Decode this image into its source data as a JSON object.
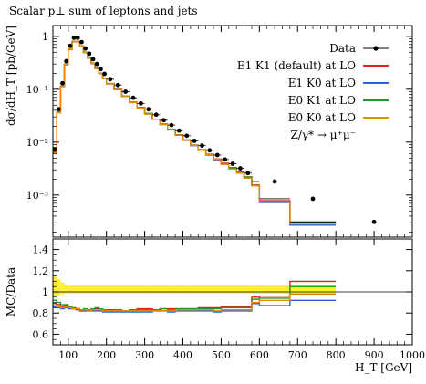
{
  "chart_data": {
    "type": "line",
    "title": "Scalar p⊥ sum of leptons and jets",
    "xlabel": "H_T [GeV]",
    "xlim": [
      60,
      1000
    ],
    "x_ticks": [
      100,
      200,
      300,
      400,
      500,
      600,
      700,
      800,
      900,
      1000
    ],
    "main_panel": {
      "ylabel": "dσ/dH_T [pb/GeV]",
      "scale": "log",
      "ylim": [
        0.00016,
        1.6
      ],
      "y_ticks": [
        {
          "value": 0.001,
          "label": "10⁻³"
        },
        {
          "value": 0.01,
          "label": "10⁻²"
        },
        {
          "value": 0.1,
          "label": "10⁻¹"
        },
        {
          "value": 1,
          "label": "1"
        }
      ],
      "bin_edges": [
        60,
        70,
        80,
        90,
        100,
        110,
        120,
        130,
        140,
        150,
        160,
        170,
        180,
        190,
        200,
        220,
        240,
        260,
        280,
        300,
        320,
        340,
        360,
        380,
        400,
        420,
        440,
        460,
        480,
        500,
        520,
        540,
        560,
        580,
        600,
        680,
        800,
        1000
      ],
      "data": [
        0.0072,
        0.042,
        0.13,
        0.34,
        0.66,
        0.94,
        0.94,
        0.78,
        0.59,
        0.47,
        0.37,
        0.3,
        0.24,
        0.195,
        0.155,
        0.12,
        0.09,
        0.069,
        0.054,
        0.042,
        0.033,
        0.026,
        0.021,
        0.0165,
        0.0132,
        0.0106,
        0.0086,
        0.007,
        0.0057,
        0.0047,
        0.0039,
        0.0032,
        0.0026,
        0.0018,
        0.00085,
        0.00031
      ],
      "data_x": [
        65,
        75,
        85,
        95,
        105,
        115,
        125,
        135,
        145,
        155,
        165,
        175,
        185,
        195,
        210,
        230,
        250,
        270,
        290,
        310,
        330,
        350,
        370,
        390,
        410,
        430,
        450,
        470,
        490,
        510,
        530,
        550,
        570,
        640,
        740,
        900
      ],
      "series": [
        {
          "name": "E1 K1 (default) at LO",
          "color": "#dd2222",
          "values": [
            0.0065,
            0.037,
            0.115,
            0.3,
            0.57,
            0.8,
            0.8,
            0.66,
            0.5,
            0.39,
            0.31,
            0.25,
            0.2,
            0.16,
            0.128,
            0.1,
            0.074,
            0.057,
            0.045,
            0.035,
            0.027,
            0.022,
            0.0175,
            0.0138,
            0.011,
            0.0088,
            0.0072,
            0.0059,
            0.0048,
            0.004,
            0.0033,
            0.0027,
            0.0022,
            0.00155,
            0.00078,
            0.00031
          ]
        },
        {
          "name": "E1 K0 at LO",
          "color": "#2266dd",
          "values": [
            0.0063,
            0.036,
            0.112,
            0.29,
            0.56,
            0.79,
            0.79,
            0.65,
            0.49,
            0.385,
            0.305,
            0.245,
            0.197,
            0.158,
            0.126,
            0.098,
            0.073,
            0.056,
            0.044,
            0.034,
            0.027,
            0.0215,
            0.017,
            0.0135,
            0.0108,
            0.0086,
            0.007,
            0.0057,
            0.0046,
            0.0038,
            0.0031,
            0.0026,
            0.0021,
            0.0015,
            0.00072,
            0.00027
          ]
        },
        {
          "name": "E0 K1 at LO",
          "color": "#229922",
          "values": [
            0.0064,
            0.037,
            0.114,
            0.3,
            0.57,
            0.8,
            0.8,
            0.66,
            0.5,
            0.39,
            0.31,
            0.25,
            0.2,
            0.16,
            0.127,
            0.099,
            0.074,
            0.057,
            0.045,
            0.035,
            0.027,
            0.022,
            0.0174,
            0.0137,
            0.011,
            0.0088,
            0.0071,
            0.0058,
            0.0047,
            0.0039,
            0.0032,
            0.0027,
            0.0022,
            0.00152,
            0.00075,
            0.0003
          ]
        },
        {
          "name": "E0 K0 at LO",
          "color": "#ee8800",
          "values": [
            0.0064,
            0.036,
            0.113,
            0.295,
            0.565,
            0.795,
            0.795,
            0.655,
            0.495,
            0.387,
            0.307,
            0.247,
            0.198,
            0.159,
            0.127,
            0.099,
            0.073,
            0.056,
            0.044,
            0.034,
            0.027,
            0.0217,
            0.0172,
            0.0136,
            0.0109,
            0.0087,
            0.007,
            0.0058,
            0.0047,
            0.0038,
            0.0031,
            0.0026,
            0.0021,
            0.0015,
            0.00074,
            0.00029
          ]
        }
      ],
      "legend": [
        "Data",
        "E1 K1 (default) at LO",
        "E1 K0 at LO",
        "E0 K1 at LO",
        "E0 K0 at LO"
      ],
      "process_label": "Z/γ* → μ⁺μ⁻"
    },
    "ratio_panel": {
      "ylabel": "MC/Data",
      "ylim": [
        0.5,
        1.5
      ],
      "y_ticks": [
        0.6,
        0.8,
        1,
        1.2,
        1.4
      ],
      "band_halfwidth": [
        0.15,
        0.12,
        0.09,
        0.07,
        0.06,
        0.06,
        0.06,
        0.06,
        0.06,
        0.06,
        0.06,
        0.06,
        0.06,
        0.06,
        0.06,
        0.06,
        0.06,
        0.06,
        0.06,
        0.06,
        0.06,
        0.06,
        0.06,
        0.06,
        0.06,
        0.06,
        0.06,
        0.06,
        0.06,
        0.06,
        0.06,
        0.06,
        0.06,
        0.06,
        0.06,
        0.06
      ],
      "series": [
        {
          "name": "E1 K1 (default) at LO",
          "color": "#dd2222",
          "values": [
            0.89,
            0.88,
            0.86,
            0.87,
            0.85,
            0.84,
            0.83,
            0.82,
            0.83,
            0.82,
            0.83,
            0.84,
            0.83,
            0.82,
            0.83,
            0.83,
            0.82,
            0.83,
            0.84,
            0.84,
            0.83,
            0.84,
            0.84,
            0.84,
            0.84,
            0.84,
            0.85,
            0.85,
            0.85,
            0.86,
            0.86,
            0.86,
            0.86,
            0.95,
            0.96,
            1.1
          ]
        },
        {
          "name": "E1 K0 at LO",
          "color": "#2266dd",
          "values": [
            0.86,
            0.85,
            0.84,
            0.85,
            0.84,
            0.84,
            0.84,
            0.83,
            0.82,
            0.82,
            0.82,
            0.82,
            0.82,
            0.81,
            0.81,
            0.81,
            0.81,
            0.81,
            0.81,
            0.81,
            0.82,
            0.82,
            0.81,
            0.82,
            0.82,
            0.82,
            0.82,
            0.82,
            0.81,
            0.82,
            0.82,
            0.82,
            0.82,
            0.89,
            0.87,
            0.92
          ]
        },
        {
          "name": "E0 K1 at LO",
          "color": "#229922",
          "values": [
            0.92,
            0.9,
            0.88,
            0.88,
            0.86,
            0.85,
            0.84,
            0.83,
            0.84,
            0.83,
            0.84,
            0.85,
            0.84,
            0.83,
            0.82,
            0.83,
            0.82,
            0.83,
            0.83,
            0.83,
            0.83,
            0.84,
            0.83,
            0.84,
            0.84,
            0.84,
            0.84,
            0.84,
            0.84,
            0.85,
            0.85,
            0.85,
            0.85,
            0.93,
            0.94,
            1.05
          ]
        },
        {
          "name": "E0 K0 at LO",
          "color": "#ee8800",
          "values": [
            0.87,
            0.86,
            0.85,
            0.86,
            0.85,
            0.84,
            0.84,
            0.83,
            0.83,
            0.82,
            0.83,
            0.83,
            0.83,
            0.82,
            0.82,
            0.82,
            0.82,
            0.82,
            0.82,
            0.82,
            0.82,
            0.82,
            0.82,
            0.83,
            0.83,
            0.83,
            0.83,
            0.83,
            0.82,
            0.83,
            0.83,
            0.83,
            0.83,
            0.9,
            0.92,
            0.98
          ]
        }
      ]
    }
  }
}
